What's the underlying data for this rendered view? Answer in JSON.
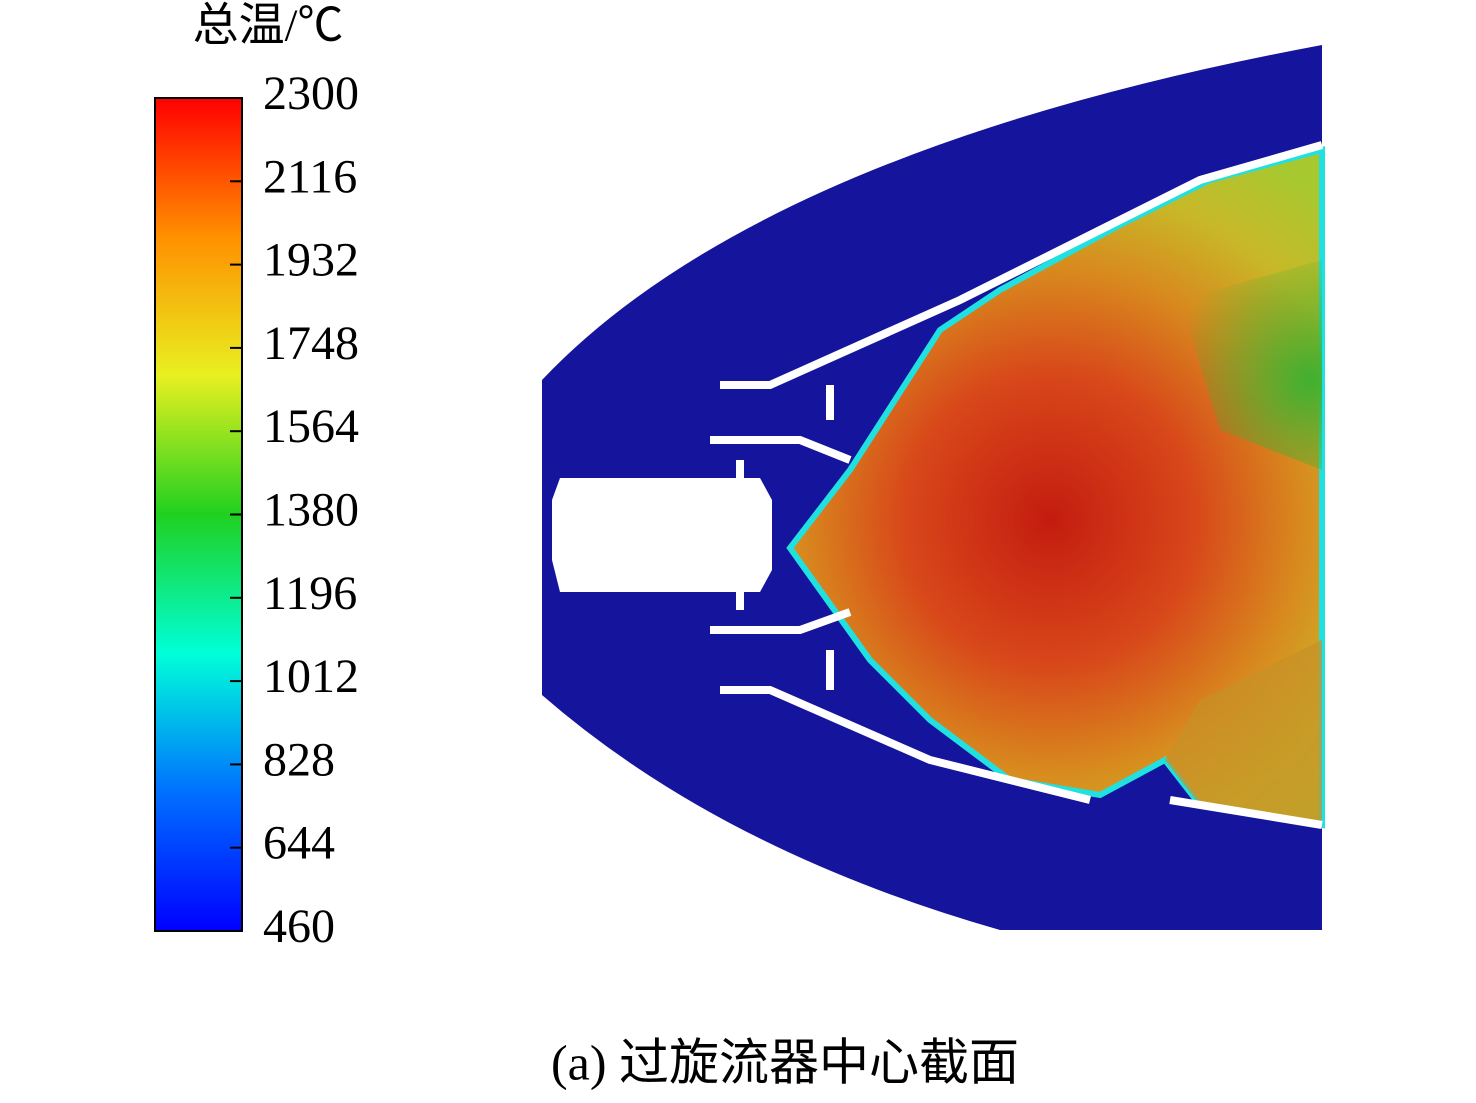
{
  "chart_data": {
    "type": "contour",
    "colorbar_title": "总温/℃",
    "caption": "(a) 过旋流器中心截面",
    "clim": [
      460,
      2300
    ],
    "cticks": [
      2300,
      2116,
      1932,
      1748,
      1564,
      1380,
      1196,
      1012,
      828,
      644,
      460
    ],
    "colormap": [
      "#0000ff",
      "#0070ff",
      "#00ffd8",
      "#20d020",
      "#e8f020",
      "#ff9000",
      "#ff0000"
    ]
  }
}
